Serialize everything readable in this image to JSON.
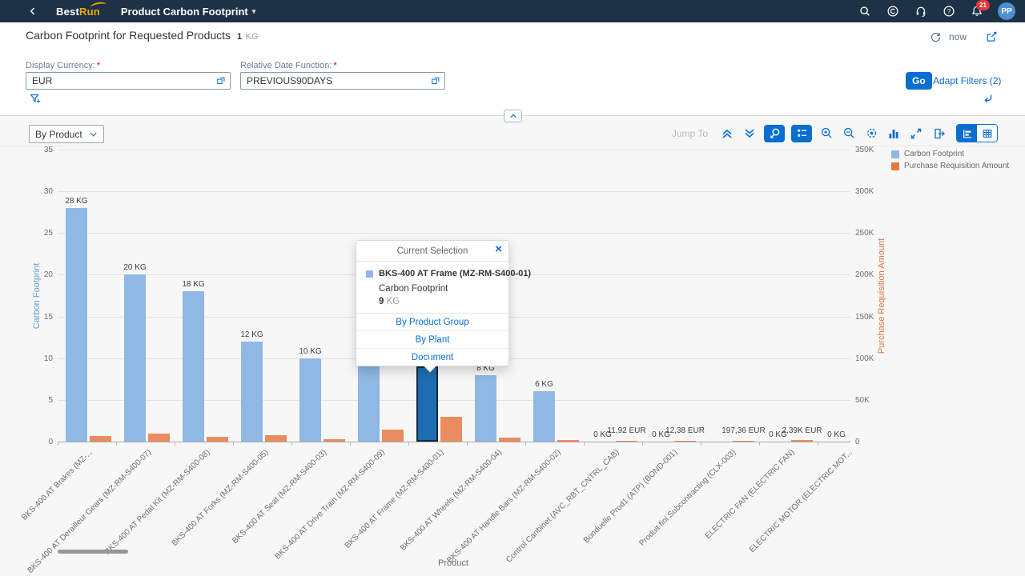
{
  "shell": {
    "logo_best": "Best",
    "logo_run": "Run",
    "app_title": "Product Carbon Footprint",
    "notification_count": "21",
    "avatar_initials": "PP"
  },
  "header": {
    "title": "Carbon Footprint for Requested Products",
    "unit_value": "1",
    "unit": "KG",
    "refresh_label": "now"
  },
  "filterbar": {
    "required_mark": "*",
    "fields": [
      {
        "label": "Display Currency:",
        "value": "EUR"
      },
      {
        "label": "Relative Date Function:",
        "value": "PREVIOUS90DAYS"
      }
    ],
    "go_label": "Go",
    "adapt_filters_label": "Adapt Filters (2)"
  },
  "chart_toolbar": {
    "dimension_selector_value": "By Product",
    "jump_to_label": "Jump To"
  },
  "legend": {
    "items": [
      {
        "label": "Carbon Footprint",
        "color": "#8fb9e4"
      },
      {
        "label": "Purchase Requisition Amount",
        "color": "#e4793f"
      }
    ]
  },
  "popup": {
    "title": "Current Selection",
    "item_name": "BKS-400 AT Frame (MZ-RM-S400-01)",
    "measure_name": "Carbon Footprint",
    "value": "9",
    "unit": "KG",
    "links": [
      "By Product Group",
      "By Plant",
      "Document"
    ]
  },
  "chart_data": {
    "type": "bar",
    "xlabel": "Product",
    "grid": true,
    "legend_position": "top-right",
    "axes": {
      "left": {
        "title": "Carbon Footprint",
        "unit": "KG",
        "range": [
          0,
          35
        ],
        "ticks": [
          0,
          5,
          10,
          15,
          20,
          25,
          30,
          35
        ],
        "color": "#5b9cd6"
      },
      "right": {
        "title": "Purchase Requisition Amount",
        "unit": "EUR",
        "range": [
          0,
          350000
        ],
        "tick_labels": [
          "0",
          "50K",
          "100K",
          "150K",
          "200K",
          "250K",
          "300K",
          "350K"
        ],
        "color": "#e1753e"
      }
    },
    "categories": [
      "BKS-400 AT Brakes (MZ-...",
      "BKS-400 AT Derailleur Gears (MZ-RM-S400-07)",
      "BKS-400 AT Pedal Kit (MZ-RM-S400-08)",
      "BKS-400 AT Forks (MZ-RM-S400-05)",
      "BKS-400 AT Seat (MZ-RM-S400-03)",
      "BKS-400 AT Drive Train (MZ-RM-S400-09)",
      "BKS-400 AT Frame (MZ-RM-S400-01)",
      "BKS-400 AT Wheels (MZ-RM-S400-04)",
      "BKS-400 AT Handle Bars (MZ-RM-S400-02)",
      "Control Canbinet (AVC_RBT_CNTRL_CAB)",
      "Bonduelle Prod1 (ATP) (BOND-001)",
      "Produit fini Subcontracting (CLX-003)",
      "ELECTRIC FAN (ELECTRIC FAN)",
      "ELECTRIC MOTOR (ELECTRIC MOT..."
    ],
    "series": [
      {
        "name": "Carbon Footprint",
        "axis": "left",
        "unit": "KG",
        "color": "#8fb9e4",
        "values": [
          28,
          20,
          18,
          12,
          10,
          10,
          9,
          8,
          6,
          0,
          0,
          0,
          0,
          0
        ],
        "data_labels": [
          "28 KG",
          "20 KG",
          "18 KG",
          "12 KG",
          "10 KG",
          null,
          null,
          "8 KG",
          "6 KG",
          "0 KG",
          "0 KG",
          null,
          "0 KG",
          "0 KG"
        ]
      },
      {
        "name": "Purchase Requisition Amount",
        "axis": "right",
        "unit": "EUR",
        "color": "#ea8c5f",
        "values": [
          6500,
          9500,
          5500,
          7500,
          3000,
          14000,
          30000,
          5000,
          2000,
          11.92,
          12.38,
          197.36,
          2390,
          100
        ],
        "data_labels": [
          null,
          null,
          null,
          null,
          null,
          null,
          null,
          null,
          null,
          "11,92 EUR",
          "12,38 EUR",
          "197,36 EUR",
          "2,39K EUR",
          null
        ]
      }
    ],
    "selected": {
      "index": 6,
      "category": "BKS-400 AT Frame (MZ-RM-S400-01)",
      "value": 9,
      "unit": "KG",
      "bar_color": "#1e6cb2"
    }
  }
}
